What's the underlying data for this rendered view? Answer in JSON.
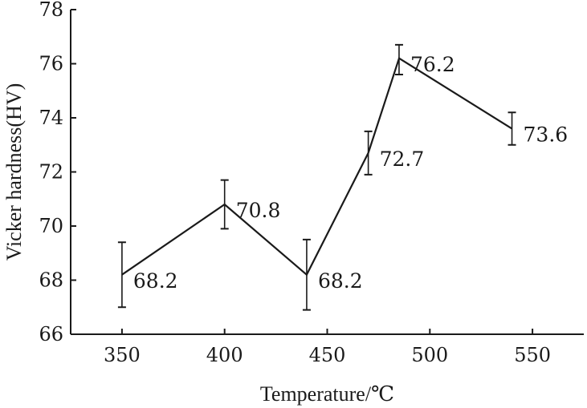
{
  "chart_data": {
    "type": "line",
    "title": "",
    "xlabel": "Temperature/℃",
    "ylabel": "Vicker hardness(HV)",
    "xlim": [
      325,
      575
    ],
    "ylim": [
      66,
      78
    ],
    "xticks": [
      350,
      400,
      450,
      500,
      550
    ],
    "yticks": [
      66,
      68,
      70,
      72,
      74,
      76,
      78
    ],
    "grid": false,
    "series": [
      {
        "x": [
          350,
          400,
          440,
          470,
          485,
          540
        ],
        "values": [
          68.2,
          70.8,
          68.2,
          72.7,
          76.2,
          73.6
        ],
        "labels": [
          "68.2",
          "70.8",
          "68.2",
          "72.7",
          "76.2",
          "73.6"
        ],
        "error_low": [
          67.0,
          69.9,
          66.9,
          71.9,
          75.6,
          73.0
        ],
        "error_high": [
          69.4,
          71.7,
          69.5,
          73.5,
          76.7,
          74.2
        ]
      }
    ],
    "colors": {
      "line": "#1a1a1a",
      "axis": "#1a1a1a"
    }
  }
}
